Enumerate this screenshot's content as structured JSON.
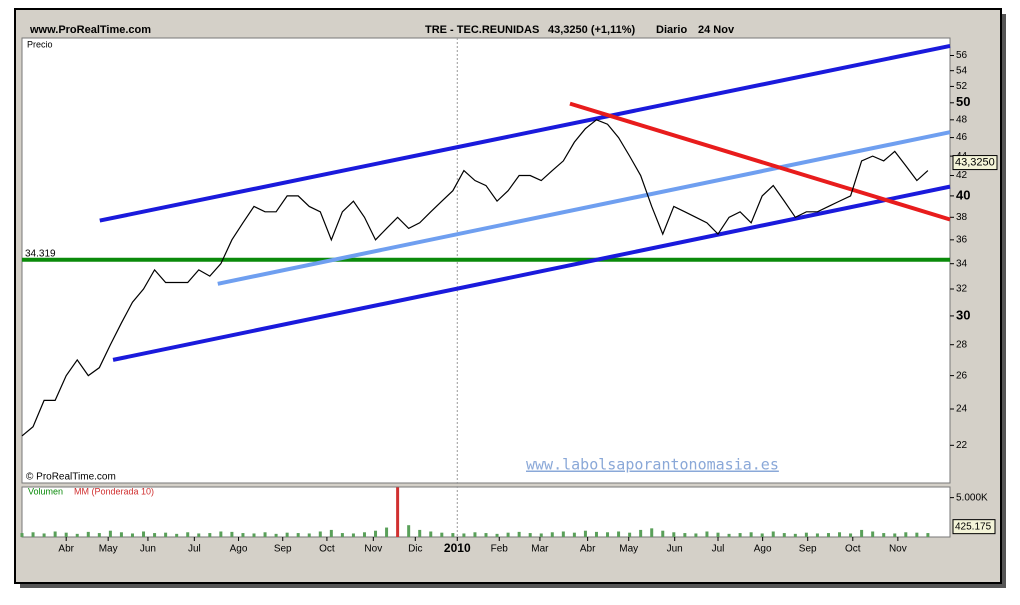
{
  "chart_data": {
    "type": "line",
    "source": "www.ProRealTime.com",
    "title": "TRE - TEC.REUNIDAS",
    "quote": "43,3250 (+1,11%)",
    "period": "Diario",
    "date": "24 Nov",
    "y_axis_label": "Precio",
    "copyright": "© ProRealTime.com",
    "watermark": "www.labolsaporantonomasia.es",
    "log_scale": true,
    "ylim": [
      20.1,
      58.4
    ],
    "yticks": [
      22,
      24,
      26,
      28,
      30,
      32,
      34,
      36,
      38,
      40,
      42,
      44,
      46,
      48,
      50,
      52,
      54,
      56
    ],
    "xlim": [
      0,
      21
    ],
    "xticks": [
      {
        "value": 1,
        "label": "Abr"
      },
      {
        "value": 1.95,
        "label": "May"
      },
      {
        "value": 2.85,
        "label": "Jun"
      },
      {
        "value": 3.9,
        "label": "Jul"
      },
      {
        "value": 4.9,
        "label": "Ago"
      },
      {
        "value": 5.9,
        "label": "Sep"
      },
      {
        "value": 6.9,
        "label": "Oct"
      },
      {
        "value": 7.95,
        "label": "Nov"
      },
      {
        "value": 8.9,
        "label": "Dic"
      },
      {
        "value": 9.85,
        "label": "2010"
      },
      {
        "value": 10.8,
        "label": "Feb"
      },
      {
        "value": 11.72,
        "label": "Mar"
      },
      {
        "value": 12.8,
        "label": "Abr"
      },
      {
        "value": 13.73,
        "label": "May"
      },
      {
        "value": 14.77,
        "label": "Jun"
      },
      {
        "value": 15.75,
        "label": "Jul"
      },
      {
        "value": 16.76,
        "label": "Ago"
      },
      {
        "value": 17.78,
        "label": "Sep"
      },
      {
        "value": 18.8,
        "label": "Oct"
      },
      {
        "value": 19.82,
        "label": "Nov"
      }
    ],
    "x": [
      0,
      0.25,
      0.5,
      0.75,
      1,
      1.25,
      1.5,
      1.75,
      2,
      2.25,
      2.5,
      2.75,
      3,
      3.25,
      3.5,
      3.75,
      4,
      4.25,
      4.5,
      4.75,
      5,
      5.25,
      5.5,
      5.75,
      6,
      6.25,
      6.5,
      6.75,
      7,
      7.25,
      7.5,
      7.75,
      8,
      8.25,
      8.5,
      8.75,
      9,
      9.25,
      9.5,
      9.75,
      10,
      10.25,
      10.5,
      10.75,
      11,
      11.25,
      11.5,
      11.75,
      12,
      12.25,
      12.5,
      12.75,
      13,
      13.25,
      13.5,
      13.75,
      14,
      14.25,
      14.5,
      14.75,
      15,
      15.25,
      15.5,
      15.75,
      16,
      16.25,
      16.5,
      16.75,
      17,
      17.25,
      17.5,
      17.75,
      18,
      18.25,
      18.5,
      18.75,
      19,
      19.25,
      19.5,
      19.75,
      20,
      20.25,
      20.5
    ],
    "series": [
      {
        "name": "TRE",
        "color": "#000000",
        "values": [
          22.5,
          23,
          24.5,
          24.5,
          26,
          27,
          26,
          26.5,
          28,
          29.5,
          31,
          32,
          33.5,
          32.5,
          32.5,
          32.5,
          33.5,
          33,
          34,
          36,
          37.5,
          39,
          38.5,
          38.5,
          40,
          40,
          39,
          38.5,
          36,
          38.5,
          39.5,
          38,
          36,
          37,
          38,
          37,
          37.5,
          38.5,
          39.5,
          40.5,
          42.5,
          41.5,
          41,
          39.5,
          40.5,
          42,
          42,
          41.5,
          42.5,
          43.5,
          45.5,
          47,
          48,
          47.5,
          46,
          44,
          42,
          39,
          36.5,
          39,
          38.5,
          38,
          37.5,
          36.5,
          38,
          38.5,
          37.5,
          40,
          41,
          39.5,
          38,
          38.5,
          38.5,
          39,
          39.5,
          40,
          43.5,
          44,
          43.5,
          44.5,
          43,
          41.5,
          42.5
        ]
      }
    ],
    "lines": [
      {
        "color": "#1a1adc",
        "x": [
          1.76,
          21
        ],
        "y": [
          37.7,
          57.3
        ]
      },
      {
        "color": "#1a1adc",
        "x": [
          2.06,
          21
        ],
        "y": [
          27.0,
          40.9
        ]
      },
      {
        "color": "#6f9ff0",
        "x": [
          4.43,
          21
        ],
        "y": [
          32.4,
          46.6
        ]
      },
      {
        "color": "#e81c1c",
        "x": [
          12.4,
          21
        ],
        "y": [
          49.9,
          37.8
        ]
      }
    ],
    "hline": {
      "value": 34.319,
      "label": "34.319",
      "color": "#0a8a0a"
    },
    "last_price": {
      "value": 43.325,
      "label": "43,3250"
    },
    "volume": {
      "title_a": "Volumen",
      "title_b": "MM (Ponderada 10)",
      "ylim": [
        0,
        6350
      ],
      "yticks": [
        {
          "value": 5000,
          "label": "5.000K"
        }
      ],
      "last": {
        "value": 425.175,
        "label": "425.175"
      },
      "values": [
        500,
        600,
        450,
        700,
        550,
        400,
        650,
        500,
        800,
        600,
        450,
        700,
        500,
        550,
        400,
        600,
        450,
        500,
        700,
        650,
        500,
        450,
        600,
        400,
        550,
        500,
        450,
        700,
        900,
        500,
        450,
        600,
        800,
        1200,
        6300,
        1500,
        900,
        700,
        550,
        500,
        450,
        600,
        500,
        400,
        550,
        650,
        500,
        450,
        600,
        700,
        550,
        800,
        650,
        600,
        700,
        550,
        900,
        1100,
        800,
        600,
        500,
        450,
        700,
        550,
        400,
        500,
        600,
        450,
        700,
        500,
        400,
        550,
        450,
        500,
        600,
        450,
        900,
        700,
        500,
        450,
        600,
        550,
        500
      ]
    }
  }
}
